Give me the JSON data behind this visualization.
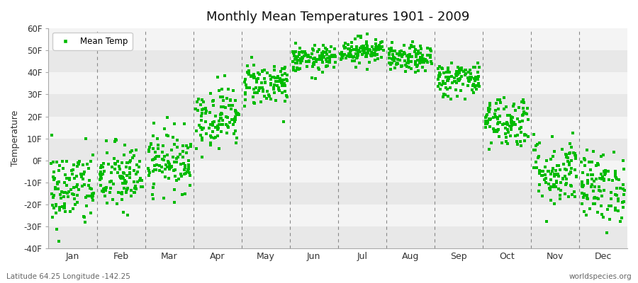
{
  "title": "Monthly Mean Temperatures 1901 - 2009",
  "ylabel": "Temperature",
  "bottom_left_label": "Latitude 64.25 Longitude -142.25",
  "bottom_right_label": "worldspecies.org",
  "ylim": [
    -40,
    60
  ],
  "yticks": [
    -40,
    -30,
    -20,
    -10,
    0,
    10,
    20,
    30,
    40,
    50,
    60
  ],
  "ytick_labels": [
    "-40F",
    "-30F",
    "-20F",
    "-10F",
    "0F",
    "10F",
    "20F",
    "30F",
    "40F",
    "50F",
    "60F"
  ],
  "months": [
    "Jan",
    "Feb",
    "Mar",
    "Apr",
    "May",
    "Jun",
    "Jul",
    "Aug",
    "Sep",
    "Oct",
    "Nov",
    "Dec"
  ],
  "marker_color": "#00BB00",
  "marker": "s",
  "marker_size": 2.5,
  "legend_label": "Mean Temp",
  "fig_bg_color": "#FFFFFF",
  "plot_bg_color": "#F0F0F0",
  "band_colors": [
    "#E8E8E8",
    "#F4F4F4"
  ],
  "monthly_mean": [
    -13,
    -8,
    0,
    20,
    35,
    46,
    50,
    46,
    37,
    18,
    -5,
    -12
  ],
  "monthly_std": [
    9,
    8,
    7,
    7,
    5,
    3,
    3,
    3,
    4,
    6,
    8,
    8
  ],
  "n_years": 109,
  "dashed_line_color": "#888888",
  "spine_color": "#AAAAAA"
}
